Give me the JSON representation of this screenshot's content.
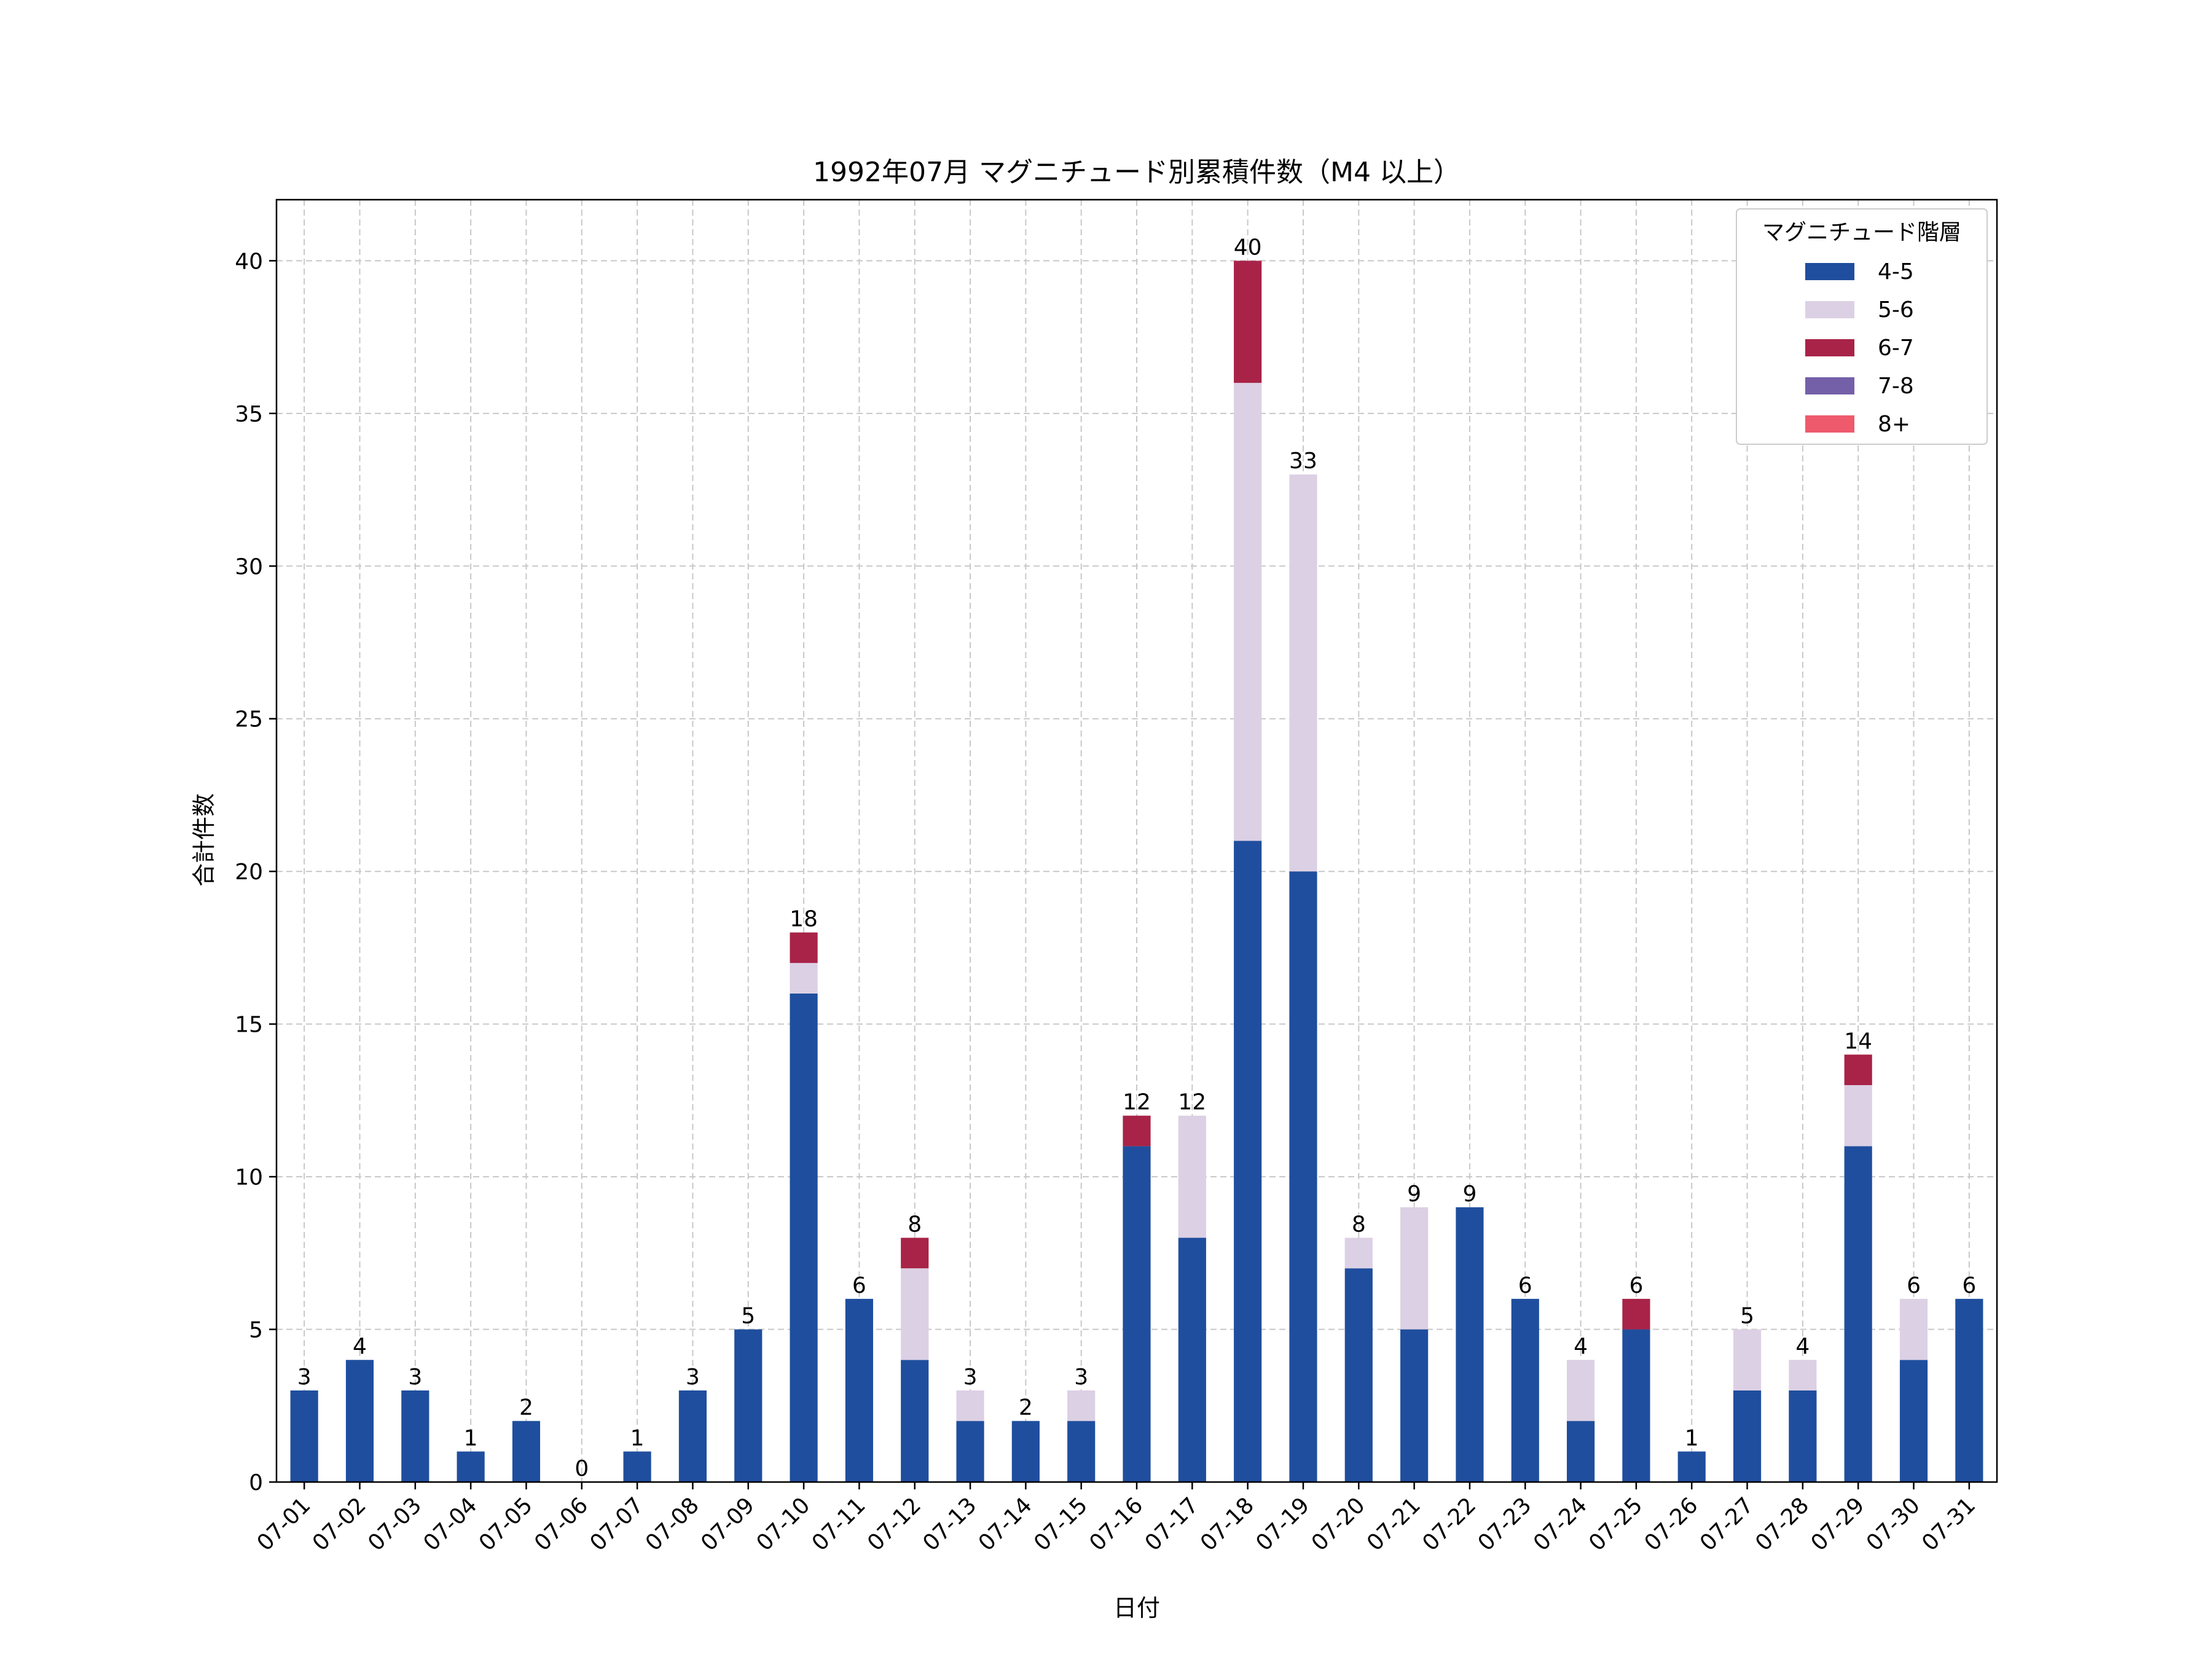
{
  "chart_data": {
    "type": "bar",
    "stacked": true,
    "title": "1992年07月 マグニチュード別累積件数（M4 以上）",
    "xlabel": "日付",
    "ylabel": "合計件数",
    "ylim": [
      0,
      42
    ],
    "yticks": [
      0,
      5,
      10,
      15,
      20,
      25,
      30,
      35,
      40
    ],
    "grid": true,
    "legend": {
      "title": "マグニチュード階層",
      "placement": "top-right"
    },
    "categories": [
      "07-01",
      "07-02",
      "07-03",
      "07-04",
      "07-05",
      "07-06",
      "07-07",
      "07-08",
      "07-09",
      "07-10",
      "07-11",
      "07-12",
      "07-13",
      "07-14",
      "07-15",
      "07-16",
      "07-17",
      "07-18",
      "07-19",
      "07-20",
      "07-21",
      "07-22",
      "07-23",
      "07-24",
      "07-25",
      "07-26",
      "07-27",
      "07-28",
      "07-29",
      "07-30",
      "07-31"
    ],
    "series": [
      {
        "name": "4-5",
        "color": "#1f4e9e",
        "values": [
          3,
          4,
          3,
          1,
          2,
          0,
          1,
          3,
          5,
          16,
          6,
          4,
          2,
          2,
          2,
          11,
          8,
          21,
          20,
          7,
          5,
          9,
          6,
          2,
          5,
          1,
          3,
          3,
          11,
          4,
          6
        ]
      },
      {
        "name": "5-6",
        "color": "#dcd0e4",
        "values": [
          0,
          0,
          0,
          0,
          0,
          0,
          0,
          0,
          0,
          1,
          0,
          3,
          1,
          0,
          1,
          0,
          4,
          15,
          13,
          1,
          4,
          0,
          0,
          2,
          0,
          0,
          2,
          1,
          2,
          2,
          0
        ]
      },
      {
        "name": "6-7",
        "color": "#a82347",
        "values": [
          0,
          0,
          0,
          0,
          0,
          0,
          0,
          0,
          0,
          1,
          0,
          1,
          0,
          0,
          0,
          1,
          0,
          4,
          0,
          0,
          0,
          0,
          0,
          0,
          1,
          0,
          0,
          0,
          1,
          0,
          0
        ]
      },
      {
        "name": "7-8",
        "color": "#7460a8",
        "values": [
          0,
          0,
          0,
          0,
          0,
          0,
          0,
          0,
          0,
          0,
          0,
          0,
          0,
          0,
          0,
          0,
          0,
          0,
          0,
          0,
          0,
          0,
          0,
          0,
          0,
          0,
          0,
          0,
          0,
          0,
          0
        ]
      },
      {
        "name": "8+",
        "color": "#ee5a6c",
        "values": [
          0,
          0,
          0,
          0,
          0,
          0,
          0,
          0,
          0,
          0,
          0,
          0,
          0,
          0,
          0,
          0,
          0,
          0,
          0,
          0,
          0,
          0,
          0,
          0,
          0,
          0,
          0,
          0,
          0,
          0,
          0
        ]
      }
    ],
    "totals": [
      3,
      4,
      3,
      1,
      2,
      0,
      1,
      3,
      5,
      18,
      6,
      8,
      3,
      2,
      3,
      12,
      12,
      40,
      33,
      8,
      9,
      9,
      6,
      4,
      6,
      1,
      5,
      4,
      14,
      6,
      6
    ]
  }
}
